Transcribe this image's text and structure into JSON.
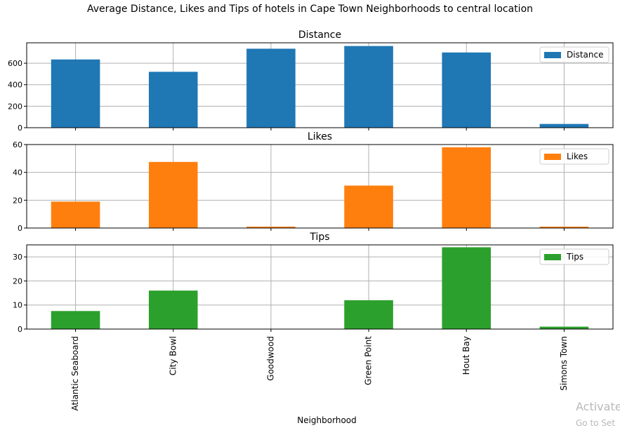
{
  "chart_data": {
    "type": "bar",
    "title": "Average Distance, Likes and Tips of hotels in Cape Town Neighborhoods to central location",
    "xlabel": "Neighborhood",
    "categories": [
      "Atlantic Seaboard",
      "City Bowl",
      "Goodwood",
      "Green Point",
      "Hout Bay",
      "Simons Town"
    ],
    "grid": true,
    "legend_position": "top-right",
    "subplots": [
      {
        "title": "Distance",
        "ylim": [
          0,
          790
        ],
        "yticks": [
          0,
          200,
          400,
          600
        ],
        "series": [
          {
            "name": "Distance",
            "color": "#1f77b4",
            "values": [
              635,
              520,
              735,
              760,
              700,
              35
            ]
          }
        ]
      },
      {
        "title": "Likes",
        "ylim": [
          0,
          60
        ],
        "yticks": [
          0,
          20,
          40,
          60
        ],
        "series": [
          {
            "name": "Likes",
            "color": "#ff7f0e",
            "values": [
              19,
              47.5,
              1,
              30.5,
              58,
              1
            ]
          }
        ]
      },
      {
        "title": "Tips",
        "ylim": [
          0,
          35
        ],
        "yticks": [
          0,
          10,
          20,
          30
        ],
        "series": [
          {
            "name": "Tips",
            "color": "#2ca02c",
            "values": [
              7.5,
              16,
              0,
              12,
              34,
              1
            ]
          }
        ]
      }
    ]
  },
  "watermark": {
    "line1": "Activate",
    "line2": "Go to Set"
  }
}
